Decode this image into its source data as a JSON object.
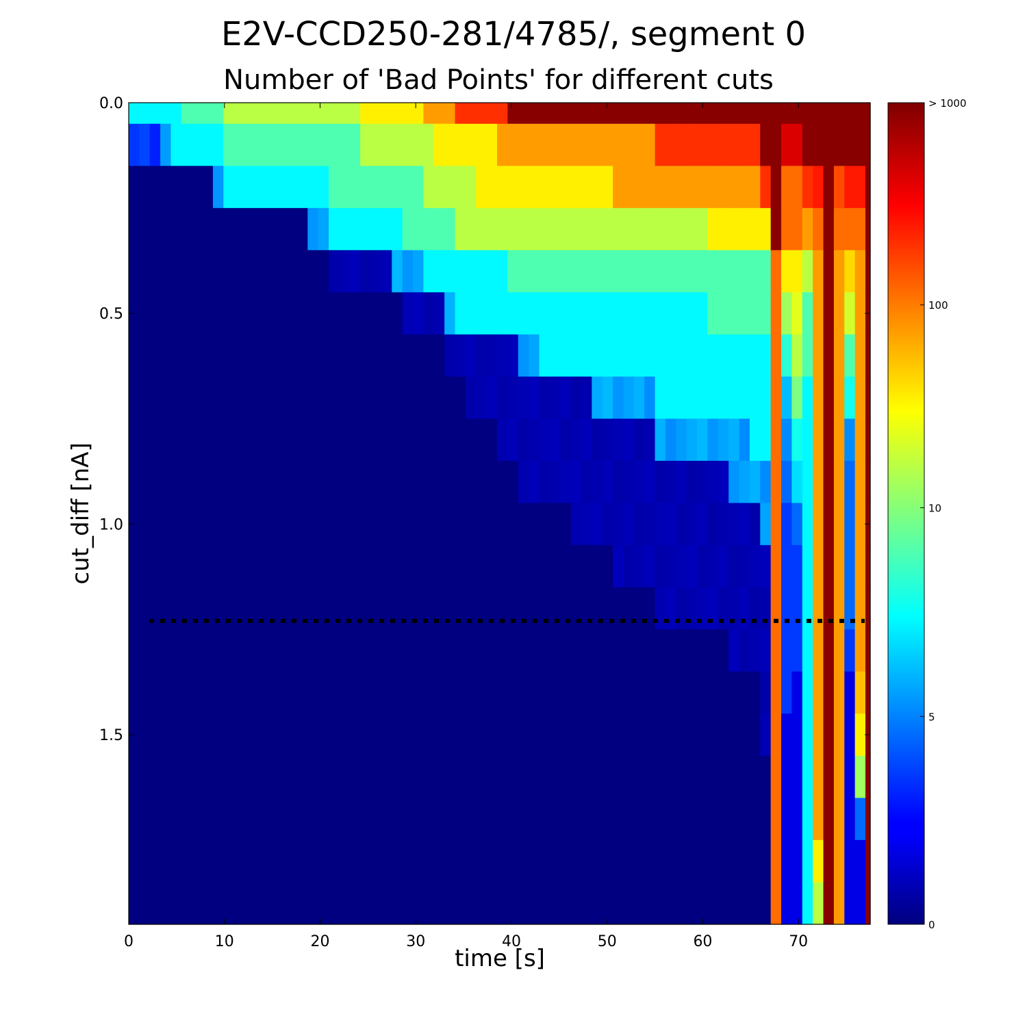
{
  "figure": {
    "title": "E2V-CCD250-281/4785/, segment 0",
    "subtitle": "Number of 'Bad Points' for different cuts"
  },
  "chart_data": {
    "type": "heatmap",
    "title": "Number of 'Bad Points' for different cuts",
    "xlabel": "time [s]",
    "ylabel": "cut_diff [nA]",
    "x_range": [
      0,
      77.5
    ],
    "y_range": [
      0,
      1.95
    ],
    "y_inverted": true,
    "x_bin_width_s": 1.1,
    "y_bin_width_nA": 0.1,
    "x_ticks": [
      "0",
      "10",
      "20",
      "30",
      "40",
      "50",
      "60",
      "70"
    ],
    "y_ticks": [
      "0.0",
      "0.5",
      "1.0",
      "1.5"
    ],
    "colorbar": {
      "colormap": "jet",
      "scale": "log",
      "ticks": [
        "> 1000",
        "100",
        "10",
        "5",
        "0"
      ]
    },
    "reference_line": {
      "y": 1.23,
      "style": "dotted",
      "color": "#000000"
    },
    "grid": false,
    "legend": "none",
    "threshold_anchors": {
      "row_index": [
        0,
        1,
        2,
        3,
        4,
        5,
        6,
        7,
        8,
        9,
        10,
        11,
        12,
        13,
        14,
        15,
        16,
        17,
        18,
        19
      ],
      "nonzero_time": [
        -1,
        -1,
        -1,
        -1,
        20,
        28,
        33,
        35,
        38,
        40,
        46,
        50,
        55,
        62,
        65,
        66,
        67,
        67,
        67,
        68
      ],
      "one_time": [
        -1,
        -1,
        -1,
        -1,
        20,
        28,
        33,
        35,
        38,
        40,
        46,
        50,
        55,
        62,
        65,
        66,
        67,
        67,
        67,
        68
      ],
      "two_time": [
        -1,
        0,
        8,
        18,
        27,
        32,
        40,
        48,
        55,
        62,
        66,
        67,
        67,
        67,
        68,
        68,
        68,
        68,
        68,
        68
      ],
      "five_time": [
        -1,
        3,
        8,
        18,
        27,
        32,
        40,
        48,
        55,
        62,
        66,
        67,
        67,
        67,
        68,
        68,
        68,
        68,
        68,
        68
      ],
      "ten_time": [
        0,
        4,
        9,
        20,
        30,
        34,
        42,
        55,
        64,
        67,
        68,
        68,
        68,
        68,
        68,
        68,
        68,
        68,
        68,
        68
      ],
      "twenty_time": [
        5,
        9,
        20,
        28,
        39,
        60,
        70,
        72,
        72,
        72,
        72,
        72,
        72,
        72,
        72,
        72,
        72,
        72,
        72,
        72
      ],
      "fifty_time": [
        9,
        24,
        30,
        34,
        70,
        72,
        72,
        72,
        72,
        72,
        72,
        72,
        72,
        72,
        72,
        72,
        72,
        72,
        72,
        72
      ],
      "hundred_time": [
        24,
        31,
        36,
        60,
        72,
        72,
        72,
        72,
        72,
        72,
        72,
        72,
        72,
        72,
        72,
        72,
        72,
        72,
        72,
        72
      ],
      "two_hundred_time": [
        30,
        38,
        50,
        67,
        72,
        72,
        72,
        72,
        72,
        72,
        72,
        72,
        72,
        72,
        72,
        72,
        72,
        72,
        72,
        72
      ],
      "five_hundred_time": [
        34,
        55,
        66,
        72,
        72,
        72,
        72,
        72,
        72,
        72,
        72,
        72,
        72,
        72,
        72,
        72,
        72,
        72,
        72,
        72
      ],
      "thousand_time": [
        39,
        66,
        72,
        72,
        72,
        72,
        72,
        72,
        72,
        72,
        72,
        72,
        72,
        72,
        72,
        72,
        72,
        72,
        72,
        72
      ]
    },
    "special_columns": [
      {
        "time": 67.8,
        "values_by_row": [
          2000,
          2000,
          2000,
          2000,
          300,
          300,
          300,
          300,
          300,
          300,
          300,
          300,
          300,
          300,
          300,
          300,
          300,
          300,
          300,
          300
        ]
      },
      {
        "time": 69.0,
        "values_by_row": [
          2000,
          1000,
          300,
          300,
          100,
          40,
          15,
          6,
          4,
          3,
          2,
          2,
          2,
          2,
          2,
          1,
          1,
          1,
          1,
          1
        ]
      },
      {
        "time": 70.1,
        "values_by_row": [
          2000,
          1000,
          300,
          300,
          100,
          70,
          50,
          30,
          12,
          8,
          3,
          2,
          2,
          2,
          1,
          1,
          1,
          1,
          1,
          1
        ]
      },
      {
        "time": 72.5,
        "values_by_row": [
          2000,
          2000,
          600,
          300,
          200,
          200,
          200,
          200,
          200,
          200,
          200,
          200,
          200,
          200,
          200,
          200,
          200,
          200,
          100,
          50
        ]
      },
      {
        "time": 73.8,
        "values_by_row": [
          2000,
          2000,
          400,
          300,
          200,
          200,
          200,
          200,
          200,
          200,
          200,
          200,
          200,
          200,
          200,
          200,
          200,
          200,
          200,
          200
        ]
      },
      {
        "time": 75.0,
        "values_by_row": [
          2000,
          2000,
          600,
          300,
          120,
          60,
          20,
          12,
          4,
          3,
          3,
          3,
          3,
          2,
          1,
          1,
          1,
          1,
          1,
          1
        ]
      },
      {
        "time": 76.4,
        "values_by_row": [
          2000,
          2000,
          600,
          300,
          200,
          200,
          200,
          200,
          200,
          200,
          200,
          200,
          200,
          200,
          150,
          100,
          40,
          3,
          1,
          1
        ]
      }
    ]
  }
}
